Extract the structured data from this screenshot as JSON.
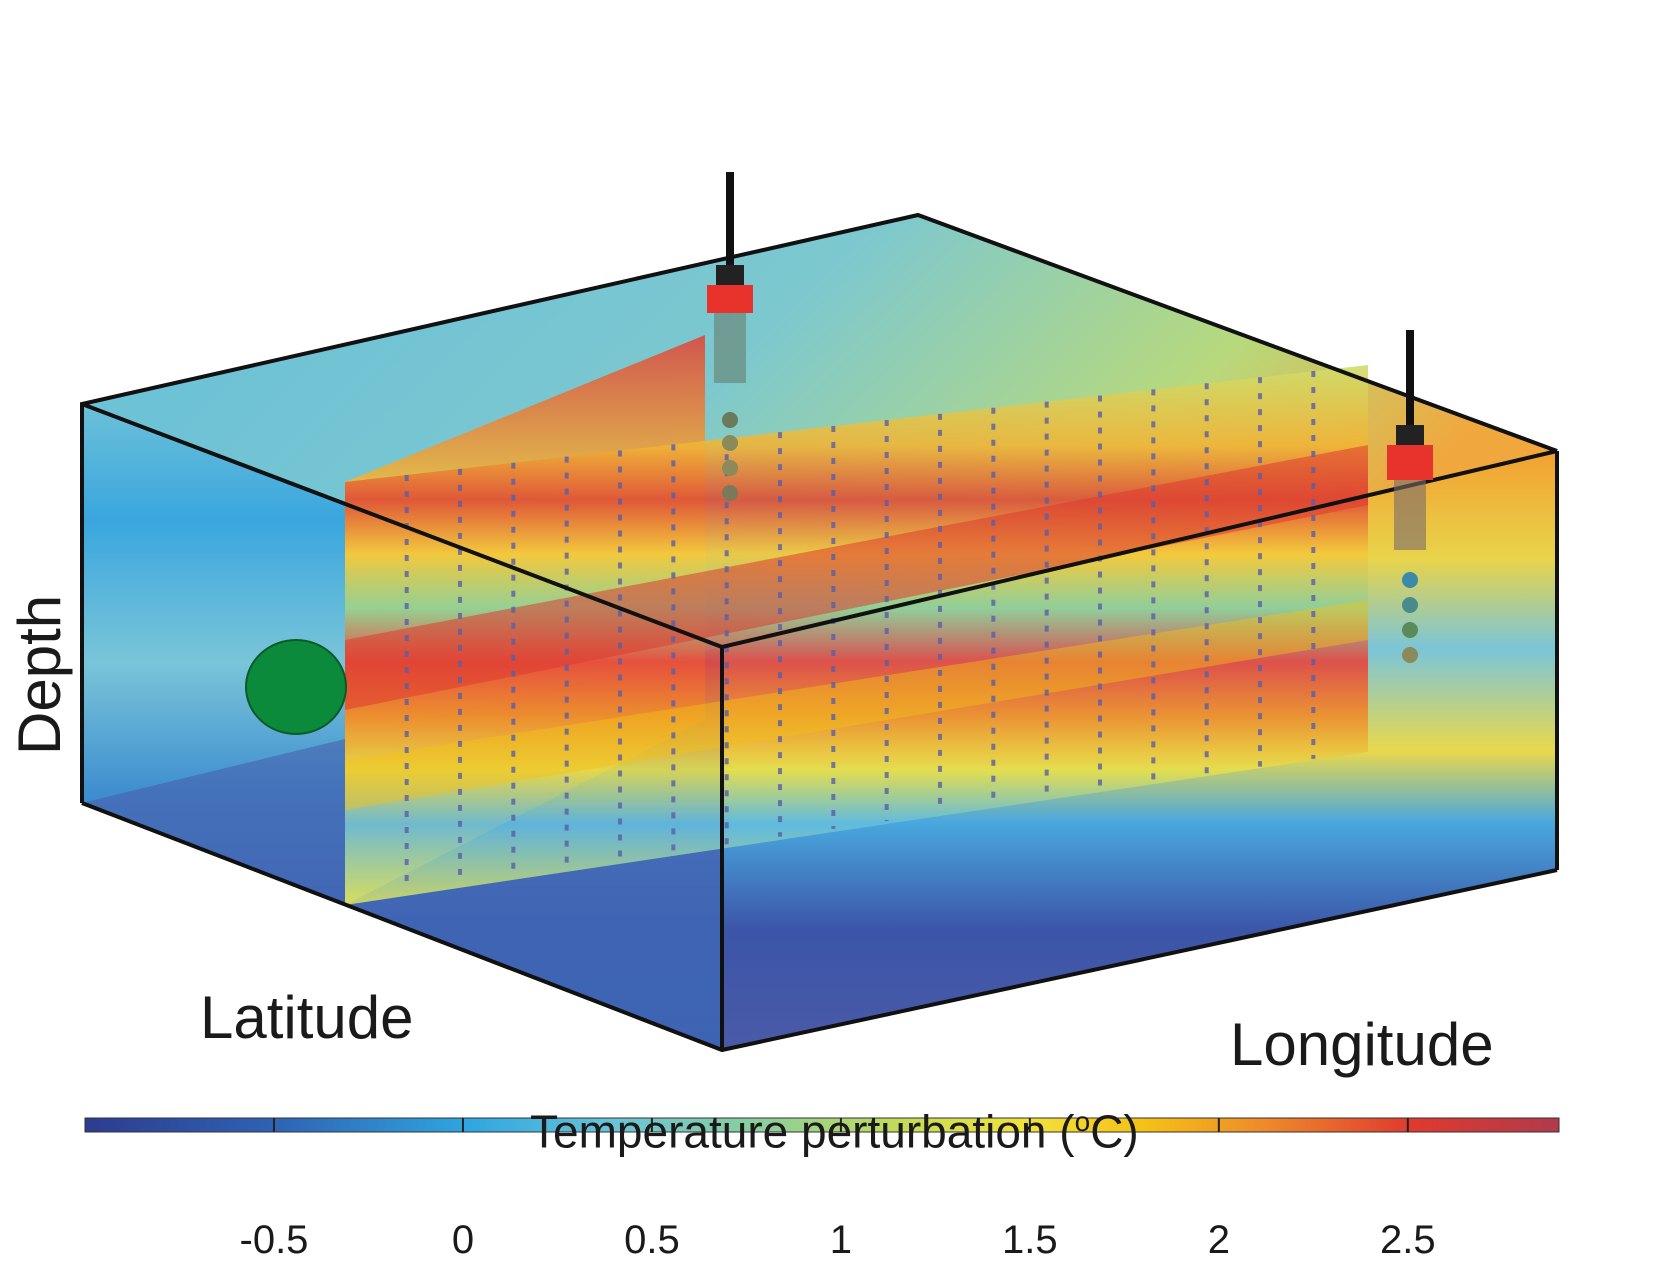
{
  "labels": {
    "depth": "Depth",
    "latitude": "Latitude",
    "longitude": "Longitude"
  },
  "colorbar": {
    "title_prefix": "Temperature perturbation (",
    "title_sup": "o",
    "title_suffix": "C)",
    "min": -1.0,
    "max": 2.9,
    "ticks": [
      {
        "value": -0.5,
        "label": "-0.5"
      },
      {
        "value": 0,
        "label": "0"
      },
      {
        "value": 0.5,
        "label": "0.5"
      },
      {
        "value": 1,
        "label": "1"
      },
      {
        "value": 1.5,
        "label": "1.5"
      },
      {
        "value": 2,
        "label": "2"
      },
      {
        "value": 2.5,
        "label": "2.5"
      }
    ],
    "colors": [
      "#2d3c8f",
      "#2f63b5",
      "#2fa6e0",
      "#6ac4d6",
      "#8ccf9a",
      "#c8dc55",
      "#f1e23c",
      "#f5c016",
      "#ee8a2a",
      "#df3a2f",
      "#b03a4c"
    ]
  },
  "colors": {
    "box_edge": "#111111",
    "marker": "#0b8a3b",
    "buoy_red": "#e8322c"
  }
}
